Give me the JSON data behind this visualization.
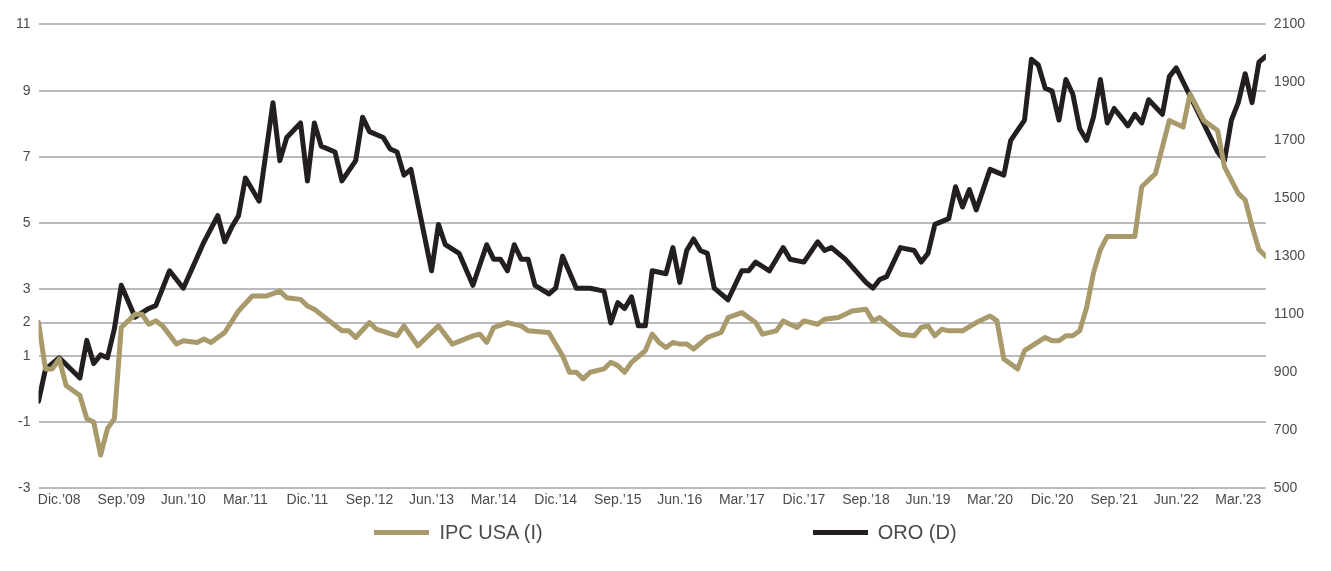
{
  "chart_data": {
    "type": "line",
    "xlim": [
      "2008-09",
      "2023-07"
    ],
    "xticks": [
      {
        "value": "2008-12",
        "label": "Dic.’08"
      },
      {
        "value": "2009-09",
        "label": "Sep.’09"
      },
      {
        "value": "2010-06",
        "label": "Jun.’10"
      },
      {
        "value": "2011-03",
        "label": "Mar.’11"
      },
      {
        "value": "2011-12",
        "label": "Dic.’11"
      },
      {
        "value": "2012-09",
        "label": "Sep.’12"
      },
      {
        "value": "2013-06",
        "label": "Jun.’13"
      },
      {
        "value": "2014-03",
        "label": "Mar.’14"
      },
      {
        "value": "2014-12",
        "label": "Dic.’14"
      },
      {
        "value": "2015-09",
        "label": "Sep.’15"
      },
      {
        "value": "2016-06",
        "label": "Jun.’16"
      },
      {
        "value": "2017-03",
        "label": "Mar.’17"
      },
      {
        "value": "2017-12",
        "label": "Dic.’17"
      },
      {
        "value": "2018-09",
        "label": "Sep.’18"
      },
      {
        "value": "2019-06",
        "label": "Jun.’19"
      },
      {
        "value": "2020-03",
        "label": "Mar.’20"
      },
      {
        "value": "2020-12",
        "label": "Dic.’20"
      },
      {
        "value": "2021-09",
        "label": "Sep.’21"
      },
      {
        "value": "2022-06",
        "label": "Jun.’22"
      },
      {
        "value": "2023-03",
        "label": "Mar.’23"
      }
    ],
    "ylim": [
      -3,
      11
    ],
    "yticks": [
      11,
      9,
      7,
      5,
      3,
      2,
      1,
      -1,
      -3
    ],
    "y2lim": [
      500,
      2100
    ],
    "y2ticks": [
      500,
      700,
      900,
      1100,
      1300,
      1500,
      1700,
      1900,
      2100
    ],
    "grid": "y",
    "legend": "bottom",
    "marker": "none",
    "line_style": "solid",
    "series": [
      {
        "name": "IPC USA (I)",
        "color": "#a89a6b",
        "axis": "y",
        "x": [
          "2008-09",
          "2008-10",
          "2008-11",
          "2008-12",
          "2009-01",
          "2009-03",
          "2009-04",
          "2009-05",
          "2009-06",
          "2009-07",
          "2009-08",
          "2009-09",
          "2009-11",
          "2009-12",
          "2010-01",
          "2010-02",
          "2010-03",
          "2010-05",
          "2010-06",
          "2010-08",
          "2010-09",
          "2010-10",
          "2010-11",
          "2010-12",
          "2011-02",
          "2011-04",
          "2011-06",
          "2011-08",
          "2011-09",
          "2011-11",
          "2011-12",
          "2012-01",
          "2012-05",
          "2012-06",
          "2012-07",
          "2012-09",
          "2012-10",
          "2013-01",
          "2013-02",
          "2013-04",
          "2013-07",
          "2013-09",
          "2013-12",
          "2014-01",
          "2014-02",
          "2014-03",
          "2014-05",
          "2014-07",
          "2014-08",
          "2014-11",
          "2015-01",
          "2015-02",
          "2015-03",
          "2015-04",
          "2015-05",
          "2015-07",
          "2015-08",
          "2015-09",
          "2015-10",
          "2015-11",
          "2016-01",
          "2016-02",
          "2016-03",
          "2016-04",
          "2016-05",
          "2016-06",
          "2016-07",
          "2016-08",
          "2016-10",
          "2016-12",
          "2017-01",
          "2017-03",
          "2017-05",
          "2017-06",
          "2017-08",
          "2017-09",
          "2017-11",
          "2017-12",
          "2018-02",
          "2018-03",
          "2018-05",
          "2018-07",
          "2018-09",
          "2018-10",
          "2018-11",
          "2019-02",
          "2019-04",
          "2019-05",
          "2019-06",
          "2019-07",
          "2019-08",
          "2019-09",
          "2019-11",
          "2020-01",
          "2020-03",
          "2020-04",
          "2020-05",
          "2020-07",
          "2020-08",
          "2020-11",
          "2020-12",
          "2021-01",
          "2021-02",
          "2021-03",
          "2021-04",
          "2021-05",
          "2021-06",
          "2021-07",
          "2021-08",
          "2021-10",
          "2021-12",
          "2022-01",
          "2022-03",
          "2022-05",
          "2022-07",
          "2022-08",
          "2022-10",
          "2022-12",
          "2023-01",
          "2023-03",
          "2023-04",
          "2023-05",
          "2023-06",
          "2023-07"
        ],
        "values": [
          2.0,
          0.6,
          0.6,
          0.9,
          0.1,
          -0.2,
          -0.9,
          -1.0,
          -2.0,
          -1.2,
          -0.9,
          1.85,
          2.25,
          2.25,
          1.95,
          2.05,
          1.9,
          1.35,
          1.45,
          1.4,
          1.5,
          1.4,
          1.55,
          1.7,
          2.35,
          2.8,
          2.8,
          2.95,
          2.75,
          2.7,
          2.5,
          2.4,
          1.75,
          1.75,
          1.55,
          2.0,
          1.8,
          1.6,
          1.9,
          1.3,
          1.9,
          1.35,
          1.6,
          1.65,
          1.4,
          1.85,
          2.0,
          1.9,
          1.75,
          1.7,
          1.0,
          0.5,
          0.5,
          0.3,
          0.5,
          0.6,
          0.8,
          0.7,
          0.5,
          0.8,
          1.15,
          1.65,
          1.4,
          1.25,
          1.4,
          1.35,
          1.35,
          1.2,
          1.55,
          1.7,
          2.15,
          2.3,
          2.0,
          1.65,
          1.75,
          2.05,
          1.85,
          2.05,
          1.95,
          2.1,
          2.15,
          2.35,
          2.4,
          2.05,
          2.15,
          1.65,
          1.6,
          1.85,
          1.9,
          1.6,
          1.8,
          1.75,
          1.75,
          2.0,
          2.2,
          2.05,
          0.9,
          0.6,
          1.15,
          1.55,
          1.45,
          1.45,
          1.6,
          1.6,
          1.75,
          2.45,
          3.5,
          4.2,
          4.6,
          4.6,
          4.6,
          6.1,
          6.5,
          8.1,
          7.9,
          8.9,
          8.1,
          7.8,
          6.7,
          5.9,
          5.7,
          4.9,
          4.2,
          4.0
        ]
      },
      {
        "name": "ORO (D)",
        "color": "#231f20",
        "axis": "y2",
        "x": [
          "2008-09",
          "2008-10",
          "2008-12",
          "2009-03",
          "2009-04",
          "2009-05",
          "2009-06",
          "2009-07",
          "2009-08",
          "2009-09",
          "2009-11",
          "2010-01",
          "2010-02",
          "2010-04",
          "2010-06",
          "2010-09",
          "2010-11",
          "2010-12",
          "2011-01",
          "2011-02",
          "2011-03",
          "2011-05",
          "2011-07",
          "2011-08",
          "2011-09",
          "2011-11",
          "2011-12",
          "2012-01",
          "2012-02",
          "2012-04",
          "2012-05",
          "2012-07",
          "2012-08",
          "2012-09",
          "2012-11",
          "2012-12",
          "2013-01",
          "2013-02",
          "2013-03",
          "2013-06",
          "2013-07",
          "2013-08",
          "2013-10",
          "2013-12",
          "2014-02",
          "2014-03",
          "2014-04",
          "2014-05",
          "2014-06",
          "2014-07",
          "2014-08",
          "2014-09",
          "2014-11",
          "2014-12",
          "2015-01",
          "2015-03",
          "2015-05",
          "2015-07",
          "2015-08",
          "2015-09",
          "2015-10",
          "2015-11",
          "2015-12",
          "2016-01",
          "2016-02",
          "2016-04",
          "2016-05",
          "2016-06",
          "2016-07",
          "2016-08",
          "2016-09",
          "2016-10",
          "2016-11",
          "2017-01",
          "2017-02",
          "2017-03",
          "2017-04",
          "2017-05",
          "2017-07",
          "2017-08",
          "2017-09",
          "2017-10",
          "2017-12",
          "2018-02",
          "2018-03",
          "2018-04",
          "2018-06",
          "2018-09",
          "2018-10",
          "2018-11",
          "2018-12",
          "2019-02",
          "2019-04",
          "2019-05",
          "2019-06",
          "2019-07",
          "2019-09",
          "2019-10",
          "2019-11",
          "2019-12",
          "2020-01",
          "2020-03",
          "2020-05",
          "2020-06",
          "2020-08",
          "2020-09",
          "2020-10",
          "2020-11",
          "2020-12",
          "2021-01",
          "2021-02",
          "2021-03",
          "2021-04",
          "2021-05",
          "2021-06",
          "2021-07",
          "2021-08",
          "2021-09",
          "2021-11",
          "2021-12",
          "2022-01",
          "2022-02",
          "2022-04",
          "2022-05",
          "2022-06",
          "2022-12",
          "2023-01",
          "2023-02",
          "2023-03",
          "2023-04",
          "2023-05",
          "2023-06",
          "2023-07"
        ],
        "values": [
          800,
          910,
          950,
          880,
          1010,
          930,
          960,
          950,
          1050,
          1200,
          1090,
          1120,
          1130,
          1250,
          1190,
          1350,
          1440,
          1350,
          1400,
          1440,
          1570,
          1490,
          1830,
          1630,
          1710,
          1760,
          1560,
          1760,
          1680,
          1660,
          1560,
          1630,
          1780,
          1730,
          1710,
          1670,
          1660,
          1580,
          1600,
          1250,
          1410,
          1340,
          1310,
          1200,
          1340,
          1290,
          1290,
          1250,
          1340,
          1290,
          1290,
          1200,
          1170,
          1190,
          1300,
          1190,
          1190,
          1180,
          1070,
          1140,
          1120,
          1160,
          1060,
          1060,
          1250,
          1240,
          1330,
          1210,
          1320,
          1360,
          1320,
          1310,
          1190,
          1150,
          1200,
          1250,
          1250,
          1280,
          1250,
          1290,
          1330,
          1290,
          1280,
          1350,
          1320,
          1330,
          1290,
          1210,
          1190,
          1220,
          1230,
          1330,
          1320,
          1280,
          1310,
          1410,
          1430,
          1540,
          1470,
          1530,
          1460,
          1600,
          1580,
          1700,
          1770,
          1980,
          1960,
          1880,
          1870,
          1770,
          1910,
          1860,
          1740,
          1700,
          1780,
          1910,
          1760,
          1810,
          1750,
          1790,
          1760,
          1840,
          1790,
          1920,
          1950,
          1660,
          1630,
          1770,
          1830,
          1930,
          1830,
          1970,
          1990
        ]
      }
    ]
  }
}
